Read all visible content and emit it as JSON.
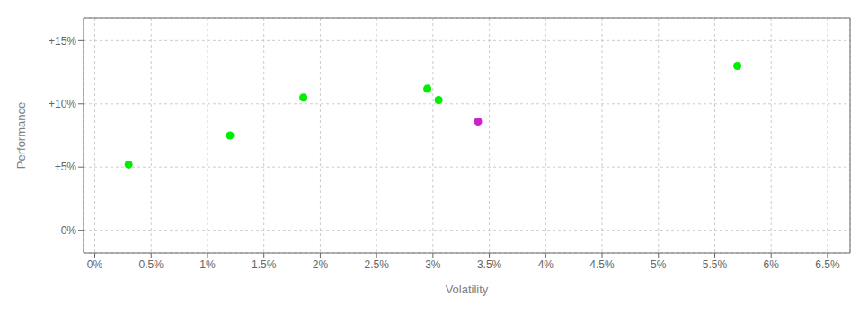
{
  "chart_data": {
    "type": "scatter",
    "xlabel": "Volatility",
    "ylabel": "Performance",
    "grid": true,
    "marker": "circle",
    "xlim": [
      -0.001,
      0.067
    ],
    "ylim": [
      -0.018,
      0.168
    ],
    "xticks": [
      {
        "value": 0.0,
        "label": "0%"
      },
      {
        "value": 0.005,
        "label": "0.5%"
      },
      {
        "value": 0.01,
        "label": "1%"
      },
      {
        "value": 0.015,
        "label": "1.5%"
      },
      {
        "value": 0.02,
        "label": "2%"
      },
      {
        "value": 0.025,
        "label": "2.5%"
      },
      {
        "value": 0.03,
        "label": "3%"
      },
      {
        "value": 0.035,
        "label": "3.5%"
      },
      {
        "value": 0.04,
        "label": "4%"
      },
      {
        "value": 0.045,
        "label": "4.5%"
      },
      {
        "value": 0.05,
        "label": "5%"
      },
      {
        "value": 0.055,
        "label": "5.5%"
      },
      {
        "value": 0.06,
        "label": "6%"
      },
      {
        "value": 0.065,
        "label": "6.5%"
      }
    ],
    "yticks": [
      {
        "value": 0.0,
        "label": "0%"
      },
      {
        "value": 0.05,
        "label": "+5%"
      },
      {
        "value": 0.1,
        "label": "+10%"
      },
      {
        "value": 0.15,
        "label": "+15%"
      }
    ],
    "series": [
      {
        "color": "#00ee00",
        "x": [
          0.003,
          0.012,
          0.0185,
          0.0295,
          0.0305,
          0.057
        ],
        "values": [
          0.052,
          0.075,
          0.105,
          0.112,
          0.103,
          0.13
        ]
      },
      {
        "color": "#cc22cc",
        "x": [
          0.034
        ],
        "values": [
          0.086
        ]
      }
    ]
  }
}
